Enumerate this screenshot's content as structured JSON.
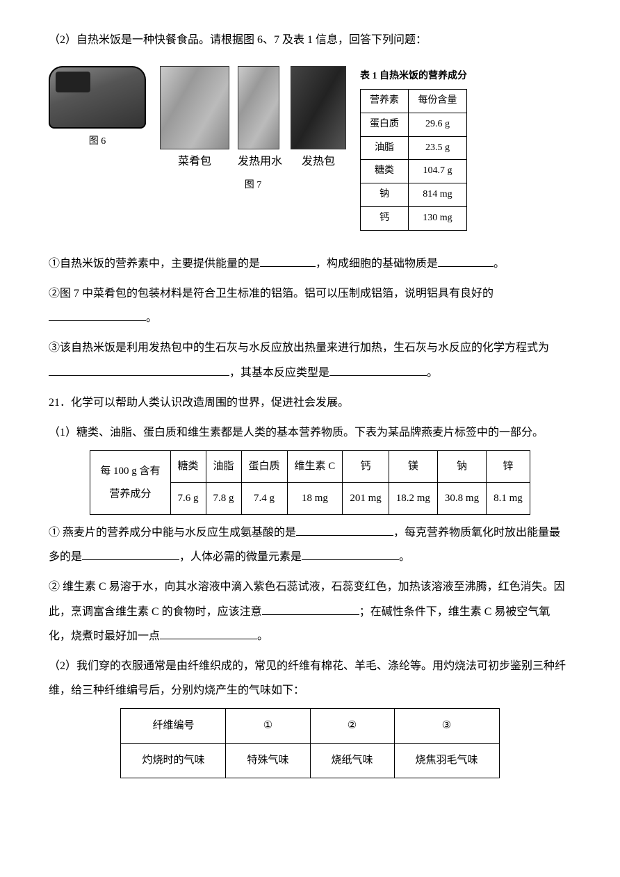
{
  "q20_part2_intro": "（2）自热米饭是一种快餐食品。请根据图 6、7 及表 1 信息，回答下列问题：",
  "fig6_caption": "图 6",
  "fig7_caption": "图 7",
  "fig7_labels": {
    "a": "菜肴包",
    "b": "发热用水",
    "c": "发热包"
  },
  "table1": {
    "caption": "表 1  自热米饭的营养成分",
    "header": {
      "c1": "营养素",
      "c2": "每份含量"
    },
    "rows": [
      {
        "name": "蛋白质",
        "val": "29.6 g"
      },
      {
        "name": "油脂",
        "val": "23.5 g"
      },
      {
        "name": "糖类",
        "val": "104.7 g"
      },
      {
        "name": "钠",
        "val": "814 mg"
      },
      {
        "name": "钙",
        "val": "130 mg"
      }
    ]
  },
  "q20_i_a": "①自热米饭的营养素中，主要提供能量的是",
  "q20_i_b": "，构成细胞的基础物质是",
  "q20_i_c": "。",
  "q20_ii_a": "②图 7 中菜肴包的包装材料是符合卫生标准的铝箔。铝可以压制成铝箔，说明铝具有良好的",
  "q20_ii_b": "。",
  "q20_iii_a": "③该自热米饭是利用发热包中的生石灰与水反应放出热量来进行加热，生石灰与水反应的化学方程式为",
  "q20_iii_b": "，其基本反应类型是",
  "q20_iii_c": "。",
  "q21_stem": "21．化学可以帮助人类认识改造周围的世界，促进社会发展。",
  "q21_p1_a": "（1）糖类、油脂、蛋白质和维生素都是人类的基本营养物质。下表为某品牌燕麦片标签中的一部分。",
  "oat": {
    "row_label_a": "每 100 g 含有",
    "row_label_b": "营养成分",
    "headers": [
      "糖类",
      "油脂",
      "蛋白质",
      "维生素 C",
      "钙",
      "镁",
      "钠",
      "锌"
    ],
    "values": [
      "7.6 g",
      "7.8 g",
      "7.4 g",
      "18 mg",
      "201 mg",
      "18.2 mg",
      "30.8 mg",
      "8.1 mg"
    ]
  },
  "q21_i_a": "① 燕麦片的营养成分中能与水反应生成氨基酸的是",
  "q21_i_b": "，每克营养物质氧化时放出能量最多的是",
  "q21_i_c": "，人体必需的微量元素是",
  "q21_i_d": "。",
  "q21_ii_a": "② 维生素 C 易溶于水，向其水溶液中滴入紫色石蕊试液，石蕊变红色，加热该溶液至沸腾，红色消失。因此，烹调富含维生素 C 的食物时，应该注意",
  "q21_ii_b": "；在碱性条件下，维生素 C 易被空气氧化，烧煮时最好加一点",
  "q21_ii_c": "。",
  "q21_p2": "（2）我们穿的衣服通常是由纤维织成的，常见的纤维有棉花、羊毛、涤纶等。用灼烧法可初步鉴别三种纤维，给三种纤维编号后，分别灼烧产生的气味如下：",
  "fiber": {
    "r1": [
      "纤维编号",
      "①",
      "②",
      "③"
    ],
    "r2": [
      "灼烧时的气味",
      "特殊气味",
      "烧纸气味",
      "烧焦羽毛气味"
    ]
  }
}
